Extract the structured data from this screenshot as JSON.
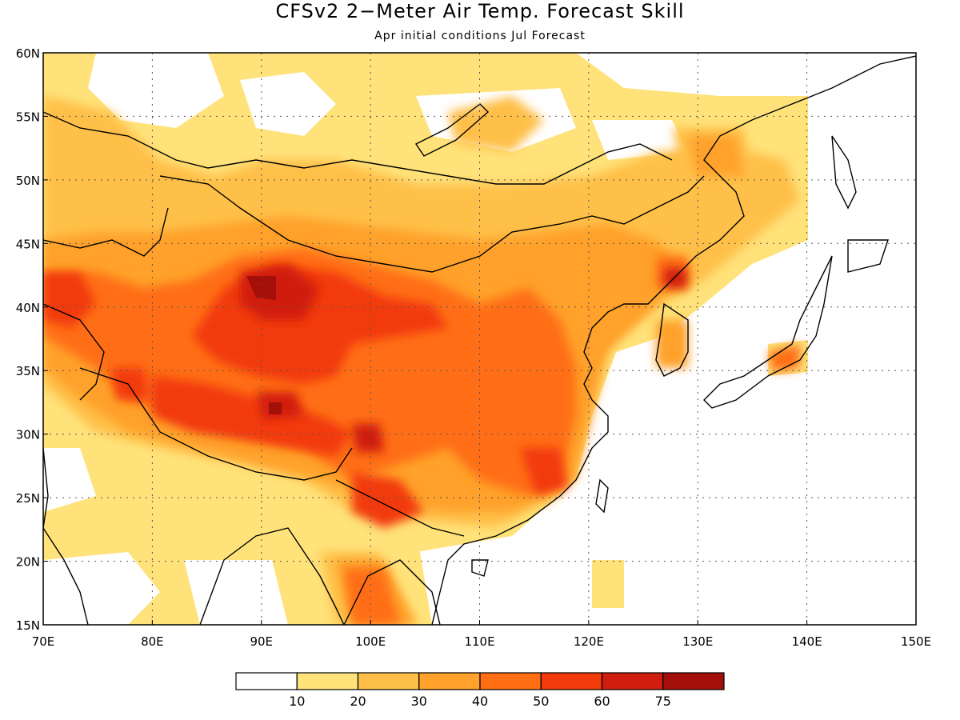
{
  "title": "CFSv2 2−Meter Air Temp. Forecast Skill",
  "subtitle": "Apr initial conditions  Jul Forecast",
  "map": {
    "lon_range": [
      70,
      150
    ],
    "lat_range": [
      15,
      60
    ],
    "lon_ticks": [
      "70E",
      "80E",
      "90E",
      "100E",
      "110E",
      "120E",
      "130E",
      "140E",
      "150E"
    ],
    "lat_ticks": [
      "15N",
      "20N",
      "25N",
      "30N",
      "35N",
      "40N",
      "45N",
      "50N",
      "55N",
      "60N"
    ],
    "gridlines": "dotted"
  },
  "colorbar": {
    "labels": [
      "10",
      "20",
      "30",
      "40",
      "50",
      "60",
      "75"
    ],
    "colors": [
      "#ffffff",
      "#ffe27a",
      "#ffc04a",
      "#ffa12a",
      "#ff6e12",
      "#f23a0a",
      "#d01e0e",
      "#a50f0a"
    ]
  }
}
